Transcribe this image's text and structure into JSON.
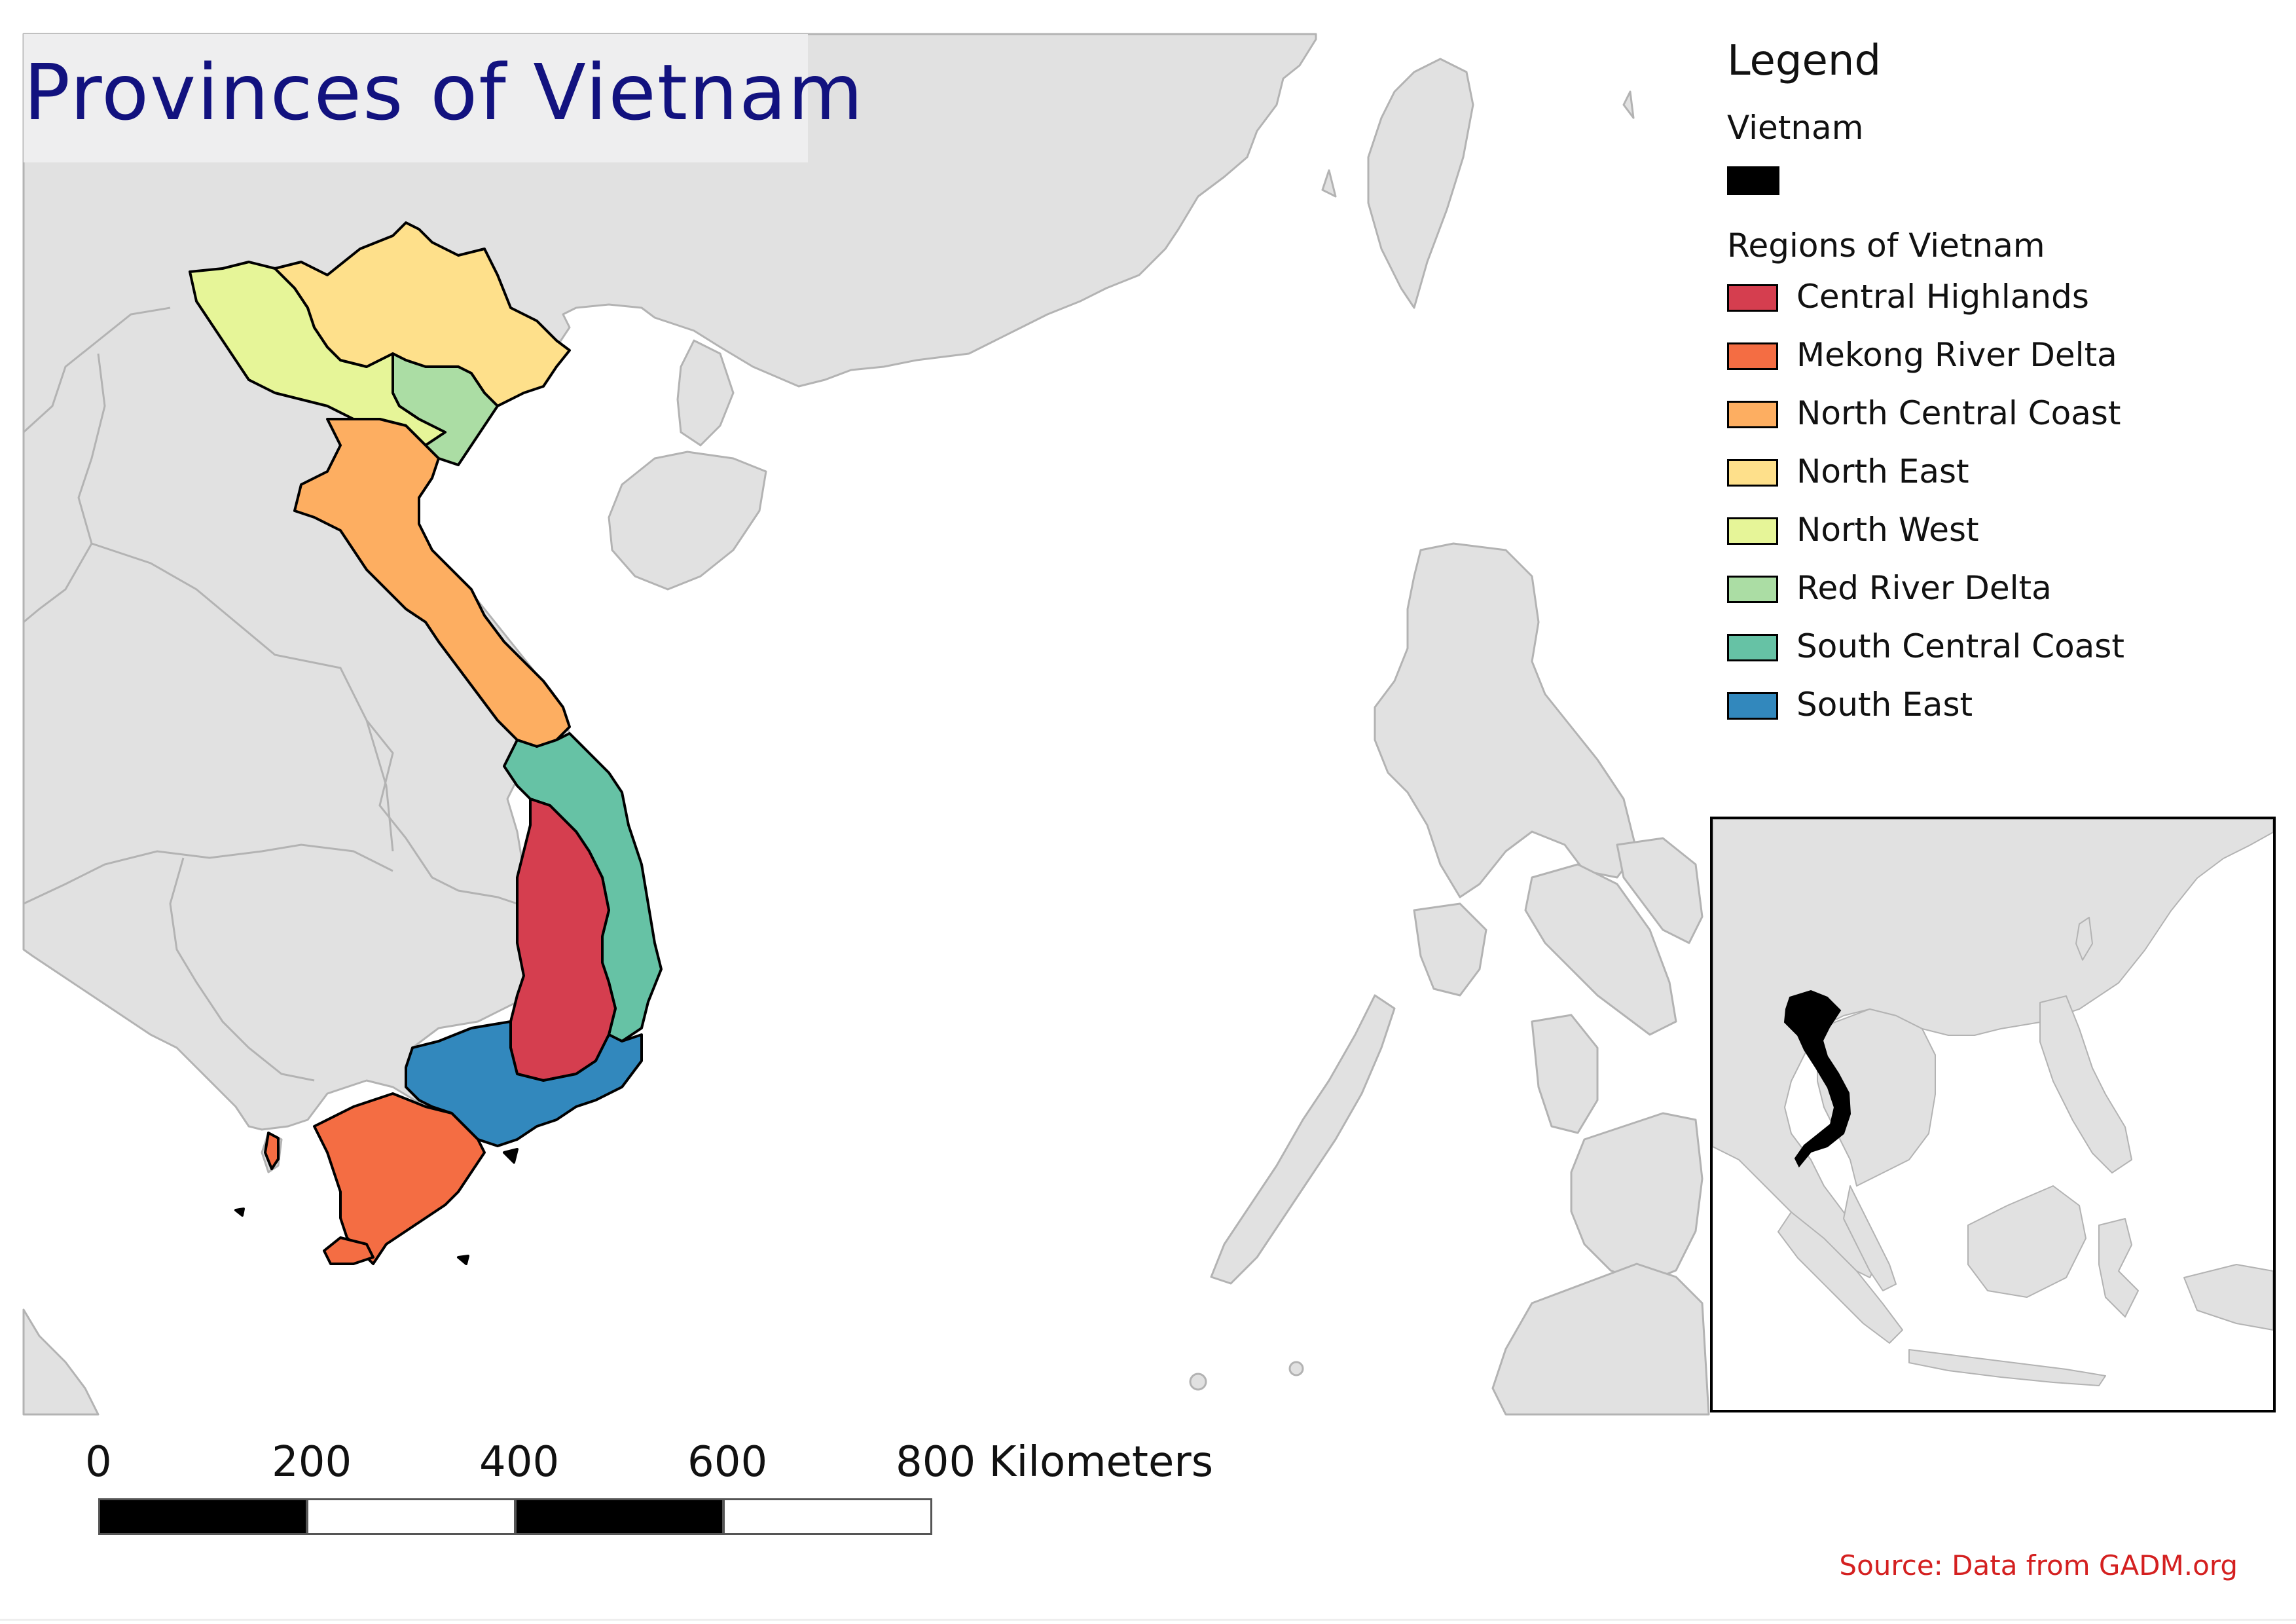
{
  "title": "Provinces of Vietnam",
  "legend": {
    "title": "Legend",
    "layers": [
      {
        "name": "Vietnam",
        "items": [
          {
            "label": "",
            "color": "#000000"
          }
        ]
      },
      {
        "name": "Regions of Vietnam",
        "items": [
          {
            "label": "Central Highlands",
            "color": "#d53e4f"
          },
          {
            "label": "Mekong River Delta",
            "color": "#f46d43"
          },
          {
            "label": "North Central Coast",
            "color": "#fdae61"
          },
          {
            "label": "North East",
            "color": "#fee08b"
          },
          {
            "label": "North West",
            "color": "#e6f598"
          },
          {
            "label": "Red River Delta",
            "color": "#abdda4"
          },
          {
            "label": "South Central Coast",
            "color": "#66c2a5"
          },
          {
            "label": "South East",
            "color": "#3288bd"
          }
        ]
      }
    ]
  },
  "scale_bar": {
    "labels": [
      "0",
      "200",
      "400",
      "600",
      "800 Kilometers"
    ],
    "segment_colors": [
      "#000000",
      "#ffffff",
      "#000000",
      "#ffffff"
    ]
  },
  "source": "Source: Data from GADM.org",
  "colors": {
    "land": "#e1e1e1",
    "land_outline": "#b3b3b3",
    "title_text": "#12127f",
    "title_background": "#eeeeef",
    "source_text": "#d42020"
  }
}
